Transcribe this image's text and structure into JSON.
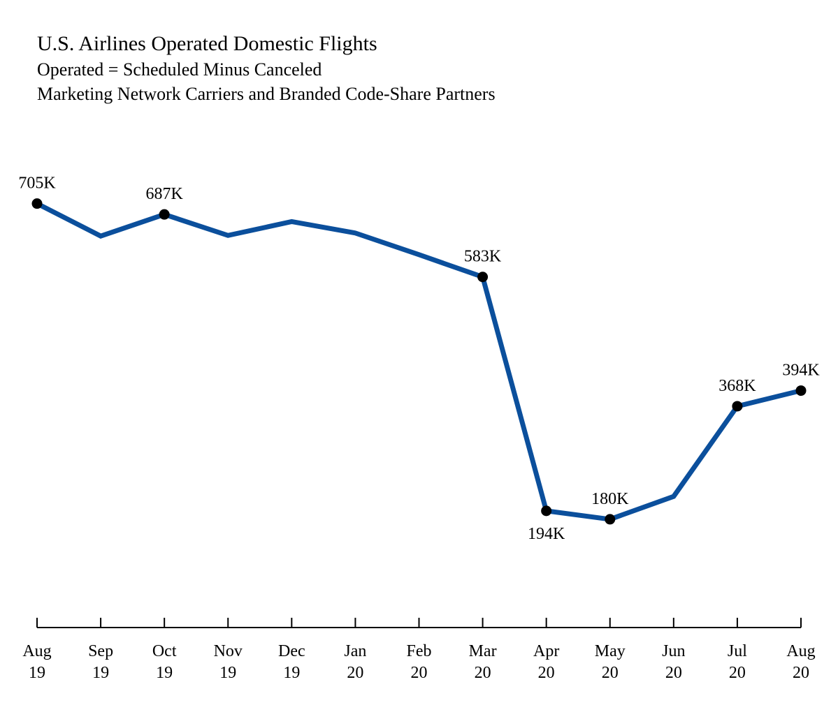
{
  "chart_data": {
    "type": "line",
    "title": "U.S. Airlines Operated Domestic Flights",
    "subtitle": "Operated = Scheduled Minus Canceled",
    "subtitle2": "Marketing Network Carriers and Branded Code-Share Partners",
    "xlabel": "",
    "ylabel": "",
    "grid": false,
    "colors": {
      "line": "#0b4f9c",
      "marker": "#000000"
    },
    "categories": [
      [
        "Aug",
        "19"
      ],
      [
        "Sep",
        "19"
      ],
      [
        "Oct",
        "19"
      ],
      [
        "Nov",
        "19"
      ],
      [
        "Dec",
        "19"
      ],
      [
        "Jan",
        "20"
      ],
      [
        "Feb",
        "20"
      ],
      [
        "Mar",
        "20"
      ],
      [
        "Apr",
        "20"
      ],
      [
        "May",
        "20"
      ],
      [
        "Jun",
        "20"
      ],
      [
        "Jul",
        "20"
      ],
      [
        "Aug",
        "20"
      ]
    ],
    "values": [
      705,
      651,
      687,
      652,
      675,
      656,
      620,
      583,
      194,
      180,
      218,
      368,
      394
    ],
    "ylim": [
      0,
      750
    ],
    "labeled_points": [
      {
        "index": 0,
        "label": "705K",
        "position": "above"
      },
      {
        "index": 2,
        "label": "687K",
        "position": "above"
      },
      {
        "index": 7,
        "label": "583K",
        "position": "above"
      },
      {
        "index": 8,
        "label": "194K",
        "position": "below"
      },
      {
        "index": 9,
        "label": "180K",
        "position": "above"
      },
      {
        "index": 11,
        "label": "368K",
        "position": "above"
      },
      {
        "index": 12,
        "label": "394K",
        "position": "above"
      }
    ]
  }
}
